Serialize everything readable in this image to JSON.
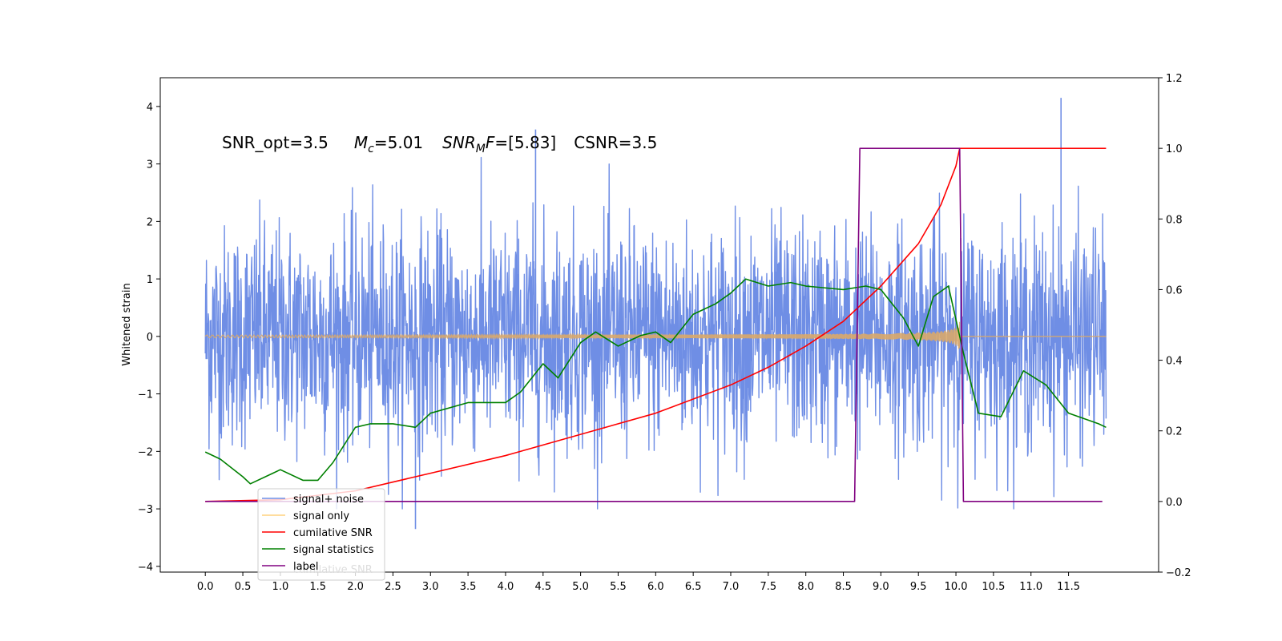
{
  "chart_data": {
    "type": "line",
    "annotation": {
      "segments": [
        {
          "text": "SNR_opt=3.5",
          "italic": false
        },
        {
          "text": "M",
          "italic": true
        },
        {
          "text": "c",
          "italic": true,
          "sub": true
        },
        {
          "text": "=5.01",
          "italic": false
        },
        {
          "text": "SNR",
          "italic": true
        },
        {
          "text": "M",
          "italic": true,
          "sub": true
        },
        {
          "text": "F",
          "italic": true
        },
        {
          "text": "=[5.83]",
          "italic": false
        },
        {
          "text": "CSNR=3.5",
          "italic": false
        }
      ]
    },
    "ylabel_left": "Whitened strain",
    "x_ticks": [
      "0.0",
      "0.5",
      "1.0",
      "1.5",
      "2.0",
      "2.5",
      "3.0",
      "3.5",
      "4.0",
      "4.5",
      "5.0",
      "5.5",
      "6.0",
      "6.5",
      "7.0",
      "7.5",
      "8.0",
      "8.5",
      "9.0",
      "9.5",
      "10.0",
      "10.5",
      "11.0",
      "11.5"
    ],
    "y_left_ticks": [
      "4",
      "3",
      "2",
      "1",
      "0",
      "−1",
      "−2",
      "−3",
      "−4"
    ],
    "y_right_ticks": [
      "1.2",
      "1.0",
      "0.8",
      "0.6",
      "0.4",
      "0.2",
      "0.0",
      "−0.2"
    ],
    "xlim": [
      -0.6,
      12.7
    ],
    "ylim_left": [
      -4.1,
      4.5
    ],
    "ylim_right": [
      -0.2,
      1.2
    ],
    "series": [
      {
        "name": "signal+ noise",
        "color": "#6f8ee5",
        "axis": "left",
        "kind": "noise",
        "x_range": [
          0.0,
          12.0
        ],
        "approx_band": [
          -2.0,
          2.0
        ],
        "peaks": [
          {
            "x": 11.4,
            "y": 4.15
          },
          {
            "x": 4.4,
            "y": 3.6
          },
          {
            "x": 2.8,
            "y": -3.35
          }
        ]
      },
      {
        "name": "signal only",
        "color": "#d9a86a",
        "axis": "left",
        "kind": "chirp",
        "x_range": [
          0.0,
          10.05
        ],
        "max_amplitude": 0.25
      },
      {
        "name": "cumilative SNR",
        "color": "#ff0000",
        "axis": "right",
        "x": [
          0.0,
          1.0,
          2.0,
          3.0,
          4.0,
          5.0,
          6.0,
          7.0,
          7.5,
          8.0,
          8.5,
          9.0,
          9.5,
          9.8,
          10.0,
          10.05,
          10.1,
          12.0
        ],
        "y": [
          0.0,
          0.005,
          0.03,
          0.08,
          0.13,
          0.19,
          0.25,
          0.33,
          0.38,
          0.44,
          0.51,
          0.61,
          0.73,
          0.84,
          0.95,
          1.0,
          1.0,
          1.0
        ]
      },
      {
        "name": "signal statistics",
        "color": "#008000",
        "axis": "right",
        "x": [
          0.0,
          0.2,
          0.5,
          0.6,
          0.9,
          1.0,
          1.3,
          1.5,
          1.7,
          2.0,
          2.2,
          2.5,
          2.8,
          3.0,
          3.5,
          4.0,
          4.2,
          4.5,
          4.7,
          5.0,
          5.2,
          5.5,
          5.8,
          6.0,
          6.2,
          6.5,
          6.8,
          7.0,
          7.2,
          7.5,
          7.8,
          8.0,
          8.5,
          8.8,
          9.0,
          9.3,
          9.5,
          9.7,
          9.9,
          10.1,
          10.3,
          10.6,
          10.9,
          11.2,
          11.5,
          11.9,
          12.0
        ],
        "y": [
          0.14,
          0.12,
          0.07,
          0.05,
          0.08,
          0.09,
          0.06,
          0.06,
          0.11,
          0.21,
          0.22,
          0.22,
          0.21,
          0.25,
          0.28,
          0.28,
          0.31,
          0.39,
          0.35,
          0.45,
          0.48,
          0.44,
          0.47,
          0.48,
          0.45,
          0.53,
          0.56,
          0.59,
          0.63,
          0.61,
          0.62,
          0.61,
          0.6,
          0.61,
          0.6,
          0.52,
          0.44,
          0.58,
          0.61,
          0.42,
          0.25,
          0.24,
          0.37,
          0.33,
          0.25,
          0.22,
          0.21
        ]
      },
      {
        "name": "label",
        "color": "#800080",
        "axis": "right",
        "x": [
          0.0,
          8.65,
          8.72,
          10.05,
          10.1,
          11.95
        ],
        "y": [
          0.0,
          0.0,
          1.0,
          1.0,
          0.0,
          0.0
        ]
      }
    ],
    "legend": {
      "position": "lower-left",
      "entries": [
        {
          "label": "signal+ noise",
          "color": "#6f8ee5"
        },
        {
          "label": "signal only",
          "color": "#ffd27f"
        },
        {
          "label": "cumilative SNR",
          "color": "#ff0000"
        },
        {
          "label": "signal statistics",
          "color": "#008000"
        },
        {
          "label": "label",
          "color": "#800080"
        }
      ],
      "ghost_text": "cumilative SNR"
    }
  }
}
